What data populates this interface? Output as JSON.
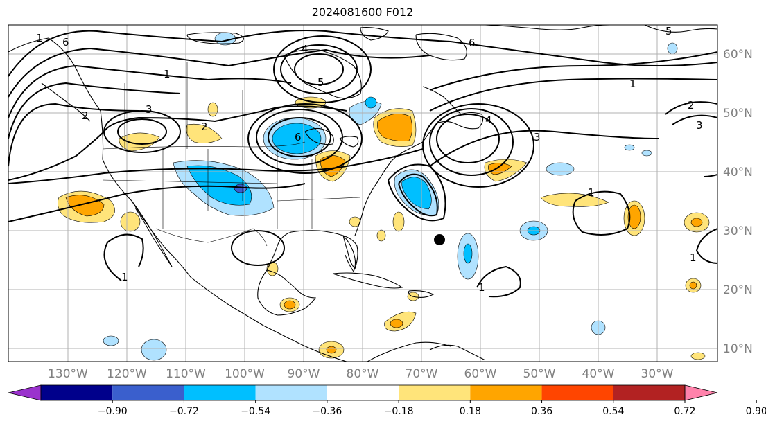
{
  "title": "2024081600 F012",
  "colors": {
    "land_line": "#000000",
    "grid": "#b0b0b0",
    "axis_label": "#808080",
    "contour": "#000000",
    "marker": "#000000"
  },
  "map": {
    "longitude_labels": [
      "130°W",
      "120°W",
      "110°W",
      "100°W",
      "90°W",
      "80°W",
      "70°W",
      "60°W",
      "50°W",
      "40°W",
      "30°W"
    ],
    "latitude_labels": [
      "60°N",
      "50°N",
      "40°N",
      "30°N",
      "20°N",
      "10°N"
    ],
    "contour_labels": [
      "6",
      "1",
      "2",
      "3",
      "4",
      "5",
      "6",
      "1",
      "2",
      "3",
      "4",
      "5",
      "6",
      "1",
      "2",
      "3",
      "1",
      "1",
      "1",
      "1"
    ]
  },
  "colorbar": {
    "tick_labels": [
      "−0.90",
      "−0.72",
      "−0.54",
      "−0.36",
      "−0.18",
      "0.18",
      "0.36",
      "0.54",
      "0.72",
      "0.90"
    ],
    "colors": [
      "#9a32cd",
      "#00008b",
      "#3a5fcd",
      "#00bfff",
      "#b0e2ff",
      "#ffffff",
      "#ffe47a",
      "#ffa500",
      "#ff4500",
      "#b22222",
      "#ff82ab"
    ]
  }
}
